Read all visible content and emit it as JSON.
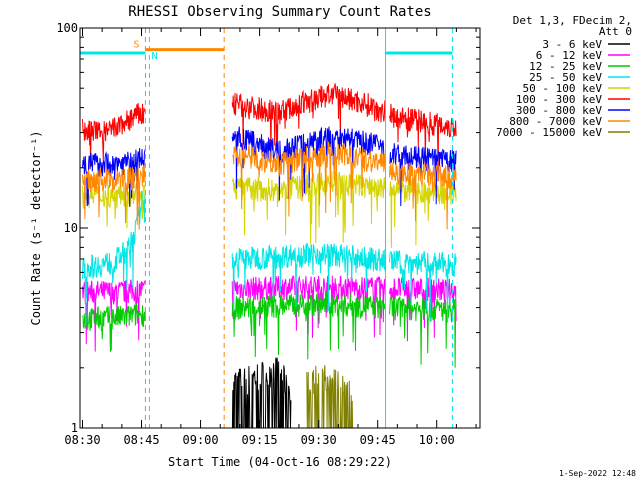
{
  "chart_data": {
    "type": "line",
    "title": "RHESSI Observing Summary Count Rates",
    "xlabel": "Start Time (04-Oct-16 08:29:22)",
    "ylabel": "Count Rate (s⁻¹ detector⁻¹)",
    "y_scale": "log",
    "ylim": [
      1,
      100
    ],
    "xlim": [
      "08:29:22",
      "10:11"
    ],
    "x_ticks": [
      "08:30",
      "08:45",
      "09:00",
      "09:15",
      "09:30",
      "09:45",
      "10:00"
    ],
    "y_ticks": [
      "1",
      "10",
      "100"
    ],
    "legend_header": [
      "Det 1,3, FDecim 2,",
      "Att 0"
    ],
    "legend_position": "right",
    "series": [
      {
        "name": "3 - 6 keV",
        "color": "#000000",
        "points": [
          [
            "09:07",
            1.5
          ],
          [
            "09:12",
            1.6
          ],
          [
            "09:16",
            1.7
          ],
          [
            "09:19",
            1.8
          ],
          [
            "09:23",
            1.4
          ]
        ]
      },
      {
        "name": "6 - 12 keV",
        "color": "#ff00ff",
        "points": [
          [
            "08:30",
            4.8
          ],
          [
            "08:40",
            4.8
          ],
          [
            "08:44",
            4.9
          ],
          [
            "09:08",
            5.0
          ],
          [
            "09:30",
            5.1
          ],
          [
            "09:50",
            5.0
          ],
          [
            "10:05",
            4.9
          ]
        ]
      },
      {
        "name": "12 - 25 keV",
        "color": "#00cc00",
        "points": [
          [
            "08:30",
            3.5
          ],
          [
            "08:40",
            3.6
          ],
          [
            "08:44",
            3.7
          ],
          [
            "09:08",
            4.0
          ],
          [
            "09:30",
            4.2
          ],
          [
            "09:50",
            4.0
          ],
          [
            "10:05",
            3.9
          ]
        ]
      },
      {
        "name": "25 - 50 keV",
        "color": "#00e5e5",
        "points": [
          [
            "08:30",
            6.3
          ],
          [
            "08:38",
            6.8
          ],
          [
            "08:42",
            8.0
          ],
          [
            "08:44",
            10.5
          ],
          [
            "08:45",
            13.5
          ],
          [
            "09:08",
            7.0
          ],
          [
            "09:30",
            7.5
          ],
          [
            "09:50",
            6.8
          ],
          [
            "10:05",
            6.6
          ]
        ]
      },
      {
        "name": "50 - 100 keV",
        "color": "#d4d400",
        "points": [
          [
            "08:30",
            14.5
          ],
          [
            "08:40",
            14.8
          ],
          [
            "08:44",
            15.0
          ],
          [
            "09:08",
            16.0
          ],
          [
            "09:20",
            15.5
          ],
          [
            "09:33",
            17.0
          ],
          [
            "09:50",
            15.5
          ],
          [
            "10:05",
            15.0
          ]
        ]
      },
      {
        "name": "100 - 300 keV",
        "color": "#ff0000",
        "points": [
          [
            "08:30",
            31.0
          ],
          [
            "08:36",
            30.0
          ],
          [
            "08:40",
            33.0
          ],
          [
            "08:44",
            37.0
          ],
          [
            "09:08",
            42.0
          ],
          [
            "09:20",
            38.0
          ],
          [
            "09:33",
            47.0
          ],
          [
            "09:42",
            42.0
          ],
          [
            "09:50",
            36.0
          ],
          [
            "10:05",
            32.0
          ]
        ]
      },
      {
        "name": "300 - 800 keV",
        "color": "#0000ff",
        "points": [
          [
            "08:30",
            21.0
          ],
          [
            "08:40",
            21.0
          ],
          [
            "08:44",
            22.0
          ],
          [
            "09:08",
            29.0
          ],
          [
            "09:20",
            24.0
          ],
          [
            "09:33",
            29.0
          ],
          [
            "09:45",
            26.0
          ],
          [
            "09:50",
            23.0
          ],
          [
            "10:05",
            21.5
          ]
        ]
      },
      {
        "name": "800 - 7000 keV",
        "color": "#ff8800",
        "points": [
          [
            "08:30",
            17.5
          ],
          [
            "08:40",
            17.5
          ],
          [
            "08:44",
            18.0
          ],
          [
            "09:08",
            24.0
          ],
          [
            "09:20",
            21.0
          ],
          [
            "09:33",
            24.0
          ],
          [
            "09:45",
            21.5
          ],
          [
            "09:50",
            19.0
          ],
          [
            "10:05",
            18.0
          ]
        ]
      },
      {
        "name": "7000 - 15000 keV",
        "color": "#808000",
        "points": [
          [
            "09:27",
            1.5
          ],
          [
            "09:30",
            1.6
          ],
          [
            "09:33",
            1.6
          ],
          [
            "09:36",
            1.5
          ],
          [
            "09:39",
            1.4
          ]
        ]
      }
    ],
    "annotations": [
      {
        "label": "S",
        "color": "#ff8800",
        "start": "08:46",
        "end": "09:06",
        "y": 78
      },
      {
        "label": "N",
        "color": "#00e5e5",
        "start": "08:29:22",
        "end": "08:46",
        "y": 75
      },
      {
        "label": "",
        "color": "#00e5e5",
        "start": "09:47",
        "end": "10:04",
        "y": 75
      }
    ],
    "vertical_markers": [
      {
        "time": "08:46",
        "color": "#ff8800",
        "style": "dashed"
      },
      {
        "time": "08:47",
        "color": "#00e5e5",
        "style": "dashed"
      },
      {
        "time": "09:06",
        "color": "#ff8800",
        "style": "dashed"
      },
      {
        "time": "09:47",
        "color": "#00e5e5",
        "style": "solid"
      },
      {
        "time": "10:04",
        "color": "#00e5e5",
        "style": "dashed"
      }
    ],
    "data_gaps": [
      [
        "08:46",
        "09:08"
      ],
      [
        "09:47",
        "09:48"
      ]
    ]
  },
  "footer_timestamp": "1-Sep-2022 12:48"
}
